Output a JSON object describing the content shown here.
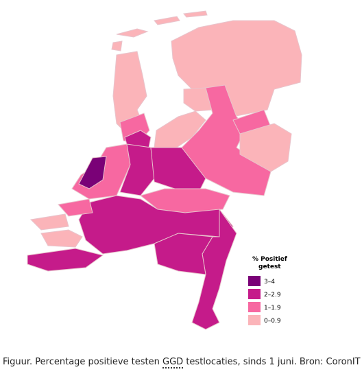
{
  "legend": {
    "title_lines": [
      "% Positief",
      "getest"
    ],
    "items": [
      {
        "label": "3–4",
        "color": "#7a0177"
      },
      {
        "label": "2–2.9",
        "color": "#c51b8a"
      },
      {
        "label": "1–1.9",
        "color": "#f768a1"
      },
      {
        "label": "0–0.9",
        "color": "#fbb4b9"
      }
    ]
  },
  "caption": {
    "before": "Figuur. Percentage positieve testen ",
    "abbr": "GGD",
    "after": " testlocaties, sinds 1 juni. Bron: CoronIT"
  }
}
